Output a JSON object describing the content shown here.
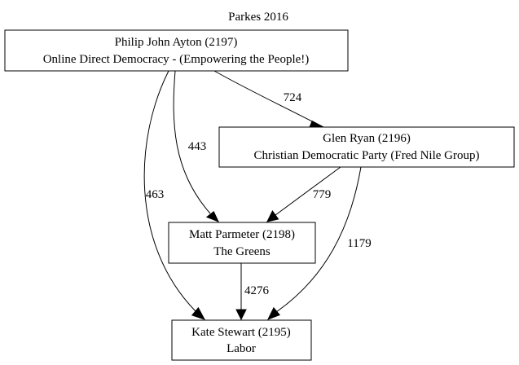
{
  "title": "Parkes 2016",
  "nodes": {
    "ayton": {
      "name": "Philip John Ayton (2197)",
      "party": "Online Direct Democracy - (Empowering the People!)"
    },
    "ryan": {
      "name": "Glen Ryan (2196)",
      "party": "Christian Democratic Party (Fred Nile Group)"
    },
    "parmeter": {
      "name": "Matt Parmeter (2198)",
      "party": "The Greens"
    },
    "stewart": {
      "name": "Kate Stewart (2195)",
      "party": "Labor"
    }
  },
  "edges": {
    "ayton_ryan": {
      "from": "Philip John Ayton (2197)",
      "to": "Glen Ryan (2196)",
      "label": "724"
    },
    "ayton_parmeter": {
      "from": "Philip John Ayton (2197)",
      "to": "Matt Parmeter (2198)",
      "label": "443"
    },
    "ayton_stewart": {
      "from": "Philip John Ayton (2197)",
      "to": "Kate Stewart (2195)",
      "label": "463"
    },
    "ryan_parmeter": {
      "from": "Glen Ryan (2196)",
      "to": "Matt Parmeter (2198)",
      "label": "779"
    },
    "ryan_stewart": {
      "from": "Glen Ryan (2196)",
      "to": "Kate Stewart (2195)",
      "label": "1179"
    },
    "parmeter_stewart": {
      "from": "Matt Parmeter (2198)",
      "to": "Kate Stewart (2195)",
      "label": "4276"
    }
  }
}
